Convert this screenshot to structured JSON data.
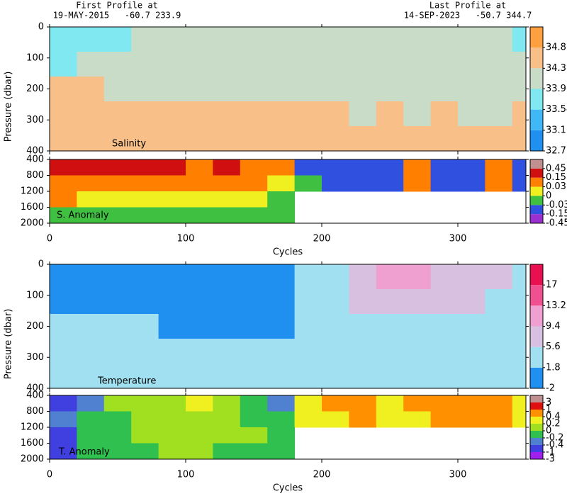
{
  "header": {
    "first_title": "First Profile at",
    "first_info": "19-MAY-2015   -60.7 233.9",
    "last_title": "Last Profile at",
    "last_info": "14-SEP-2023   -50.7 344.7"
  },
  "chart_data": [
    {
      "type": "heatmap",
      "label": "Salinity",
      "ylabel": "Pressure (dbar)",
      "xlim": [
        0,
        350
      ],
      "xticks": [
        0,
        100,
        200,
        300
      ],
      "xticklabels": false,
      "ylim": [
        400,
        0
      ],
      "yticks": [
        0,
        100,
        200,
        300,
        400
      ],
      "x": [
        10,
        30,
        50,
        70,
        90,
        110,
        130,
        150,
        170,
        190,
        210,
        230,
        250,
        270,
        290,
        310,
        330,
        350
      ],
      "y": [
        40,
        120,
        200,
        280,
        360
      ],
      "values": [
        [
          33.8,
          33.8,
          33.9,
          34.1,
          34.1,
          34.1,
          34.0,
          34.1,
          34.1,
          34.1,
          34.1,
          34.0,
          34.1,
          34.1,
          34.1,
          34.1,
          34.1,
          33.8
        ],
        [
          33.9,
          34.0,
          34.1,
          34.1,
          34.1,
          34.1,
          34.1,
          34.1,
          34.1,
          34.1,
          34.1,
          34.1,
          34.1,
          34.1,
          34.1,
          34.1,
          34.1,
          34.0
        ],
        [
          34.5,
          34.4,
          34.3,
          34.2,
          34.2,
          34.2,
          34.2,
          34.3,
          34.2,
          34.1,
          34.2,
          34.1,
          34.1,
          34.1,
          34.2,
          34.1,
          34.1,
          34.1
        ],
        [
          34.6,
          34.6,
          34.5,
          34.5,
          34.4,
          34.4,
          34.5,
          34.5,
          34.5,
          34.4,
          34.4,
          34.3,
          34.4,
          34.3,
          34.4,
          34.3,
          34.2,
          34.4
        ],
        [
          34.6,
          34.6,
          34.6,
          34.6,
          34.5,
          34.5,
          34.6,
          34.6,
          34.6,
          34.5,
          34.5,
          34.5,
          34.5,
          34.5,
          34.5,
          34.5,
          34.4,
          34.5
        ]
      ],
      "levels": [
        32.7,
        33.12,
        33.54,
        33.96,
        34.38,
        34.8
      ],
      "colors": [
        "#2090f0",
        "#40b8f8",
        "#80e8f0",
        "#c8dcc8",
        "#f8c088",
        "#ffa040"
      ]
    },
    {
      "type": "heatmap",
      "label": "S. Anomaly",
      "xlabel": "Cycles",
      "xlim": [
        0,
        350
      ],
      "xticks": [
        0,
        100,
        200,
        300
      ],
      "xticklabels": true,
      "ylim": [
        2000,
        400
      ],
      "yticks": [
        400,
        800,
        1200,
        1600,
        2000
      ],
      "x": [
        10,
        30,
        50,
        70,
        90,
        110,
        130,
        150,
        170,
        190,
        210,
        230,
        250,
        270,
        290,
        310,
        330,
        350
      ],
      "y": [
        600,
        1000,
        1400,
        1800
      ],
      "values": [
        [
          0.2,
          0.2,
          0.2,
          0.2,
          0.2,
          0.1,
          0.2,
          0.1,
          0.1,
          -0.05,
          -0.1,
          -0.1,
          -0.1,
          0.05,
          -0.1,
          -0.1,
          0.05,
          -0.1
        ],
        [
          0.1,
          0.1,
          0.1,
          0.05,
          0.1,
          0.05,
          0.1,
          0.05,
          0.02,
          -0.02,
          -0.05,
          -0.05,
          -0.1,
          0.05,
          -0.1,
          -0.1,
          0.05,
          -0.05
        ],
        [
          0.05,
          0.02,
          0.02,
          0.02,
          0.02,
          0.01,
          0.02,
          0.01,
          -0.01,
          null,
          null,
          null,
          null,
          null,
          null,
          null,
          null,
          null
        ],
        [
          -0.01,
          -0.01,
          -0.01,
          -0.01,
          -0.01,
          -0.01,
          -0.01,
          -0.02,
          -0.02,
          null,
          null,
          null,
          null,
          null,
          null,
          null,
          null,
          null
        ]
      ],
      "levels": [
        -0.45,
        -0.15,
        -0.03,
        0,
        0.03,
        0.15,
        0.45
      ],
      "colors": [
        "#9b30d0",
        "#3050e0",
        "#40c040",
        "#f0f020",
        "#ff8000",
        "#d01010",
        "#c09090"
      ]
    },
    {
      "type": "heatmap",
      "label": "Temperature",
      "ylabel": "Pressure (dbar)",
      "xlim": [
        0,
        350
      ],
      "xticks": [
        0,
        100,
        200,
        300
      ],
      "xticklabels": false,
      "ylim": [
        400,
        0
      ],
      "yticks": [
        0,
        100,
        200,
        300,
        400
      ],
      "x": [
        10,
        30,
        50,
        70,
        90,
        110,
        130,
        150,
        170,
        190,
        210,
        230,
        250,
        270,
        290,
        310,
        330,
        350
      ],
      "y": [
        40,
        120,
        200,
        280,
        360
      ],
      "values": [
        [
          1.5,
          1.5,
          1.5,
          1.5,
          0.5,
          1.0,
          0.8,
          1.0,
          0.5,
          2.5,
          4,
          7,
          11,
          10,
          8,
          8,
          6,
          4
        ],
        [
          1.5,
          1.5,
          1.5,
          1.5,
          0.8,
          1.2,
          1.0,
          1.2,
          0.8,
          2.5,
          3,
          6,
          8,
          7,
          6,
          6,
          5,
          3
        ],
        [
          2.0,
          2.0,
          1.8,
          1.8,
          1.5,
          1.5,
          1.5,
          1.6,
          1.5,
          2.5,
          3,
          3.5,
          4,
          4,
          3.5,
          3.5,
          3,
          3
        ],
        [
          2.2,
          2.2,
          2.0,
          2.0,
          1.9,
          2.0,
          1.9,
          2.0,
          2.0,
          2.5,
          2.5,
          3,
          3,
          3,
          3,
          2.5,
          2.5,
          2.5
        ],
        [
          2.3,
          2.3,
          2.2,
          2.2,
          2.1,
          2.2,
          2.1,
          2.1,
          2.2,
          2.4,
          2.4,
          2.5,
          2.5,
          2.5,
          2.5,
          2.4,
          2.4,
          2.4
        ]
      ],
      "levels": [
        -2,
        1.8,
        5.6,
        9.4,
        13.2,
        17
      ],
      "colors": [
        "#2090f0",
        "#a0e0f0",
        "#d8c0e0",
        "#f0a0d0",
        "#f05090",
        "#e81050"
      ]
    },
    {
      "type": "heatmap",
      "label": "T. Anomaly",
      "xlabel": "Cycles",
      "xlim": [
        0,
        350
      ],
      "xticks": [
        0,
        100,
        200,
        300
      ],
      "xticklabels": true,
      "ylim": [
        2000,
        400
      ],
      "yticks": [
        400,
        800,
        1200,
        1600,
        2000
      ],
      "x": [
        10,
        30,
        50,
        70,
        90,
        110,
        130,
        150,
        170,
        190,
        210,
        230,
        250,
        270,
        290,
        310,
        330,
        350
      ],
      "y": [
        600,
        1000,
        1400,
        1800
      ],
      "values": [
        [
          -0.5,
          -0.3,
          0,
          0.1,
          0.1,
          0.2,
          0.1,
          -0.1,
          -0.3,
          0.3,
          0.5,
          0.8,
          0.3,
          0.5,
          0.6,
          0.8,
          0.6,
          0.2
        ],
        [
          -0.3,
          -0.2,
          -0.1,
          0,
          0.1,
          0.1,
          0,
          -0.1,
          -0.2,
          0.2,
          0.3,
          0.5,
          0.3,
          0.3,
          0.5,
          0.5,
          0.4,
          0.2
        ],
        [
          -0.5,
          -0.1,
          -0.1,
          0,
          0.1,
          0.1,
          0,
          0,
          -0.1,
          null,
          null,
          null,
          null,
          null,
          null,
          null,
          null,
          null
        ],
        [
          -0.5,
          -0.1,
          -0.1,
          -0.05,
          0,
          0,
          -0.05,
          -0.05,
          -0.1,
          null,
          null,
          null,
          null,
          null,
          null,
          null,
          null,
          null
        ]
      ],
      "levels": [
        -3,
        -1,
        -0.4,
        -0.2,
        0,
        0.2,
        0.4,
        1,
        3
      ],
      "colors": [
        "#a020f0",
        "#4040e0",
        "#5080d0",
        "#30c050",
        "#a0e020",
        "#f0f020",
        "#ff9000",
        "#e01010",
        "#c09090"
      ]
    }
  ]
}
